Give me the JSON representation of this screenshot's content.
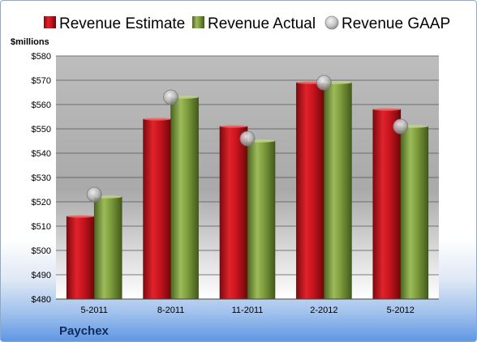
{
  "company": "Paychex",
  "unit_label": "$millions",
  "chart_data": {
    "type": "bar",
    "title": "",
    "xlabel": "",
    "ylabel": "$millions",
    "categories": [
      "5-2011",
      "8-2011",
      "11-2011",
      "2-2012",
      "5-2012"
    ],
    "ylim": [
      480,
      580
    ],
    "yticks": [
      480,
      490,
      500,
      510,
      520,
      530,
      540,
      550,
      560,
      570,
      580
    ],
    "y_tick_labels": [
      "$480",
      "$490",
      "$500",
      "$510",
      "$520",
      "$530",
      "$540",
      "$550",
      "$560",
      "$570",
      "$580"
    ],
    "grid": true,
    "legend_position": "top",
    "series": [
      {
        "name": "Revenue Estimate",
        "kind": "bar",
        "color": "#c8141e",
        "values": [
          514,
          554,
          551,
          569,
          558
        ]
      },
      {
        "name": "Revenue Actual",
        "kind": "bar",
        "color": "#7a9a3a",
        "values": [
          522,
          563,
          545,
          569,
          551
        ]
      },
      {
        "name": "Revenue GAAP",
        "kind": "marker",
        "color": "#b0b0b0",
        "values": [
          523,
          563,
          546,
          569,
          551
        ]
      }
    ]
  }
}
